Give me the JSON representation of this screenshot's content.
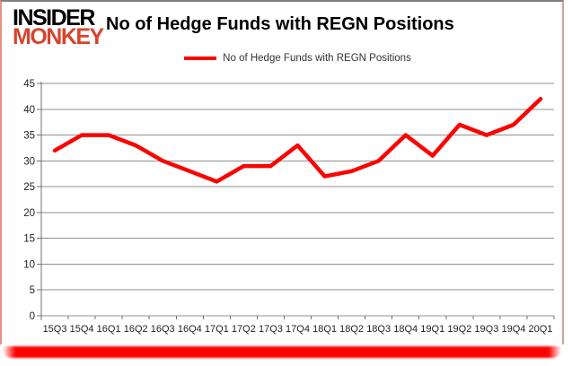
{
  "logo": {
    "line1": "INSIDER",
    "line2": "MONKEY"
  },
  "header": {
    "title": "No of Hedge Funds with REGN Positions"
  },
  "legend": {
    "label": "No of Hedge Funds with REGN Positions"
  },
  "colors": {
    "line": "#fb0300",
    "gridline": "#909090",
    "axis": "#707070",
    "tick_label": "#1f1f1f",
    "title_text": "#000000",
    "logo_insider": "#000000",
    "logo_monkey": "#d8442e",
    "bottom_border": "#fb0300"
  },
  "chart_data": {
    "type": "line",
    "title": "No of Hedge Funds with REGN Positions",
    "categories": [
      "15Q3",
      "15Q4",
      "16Q1",
      "16Q2",
      "16Q3",
      "16Q4",
      "17Q1",
      "17Q2",
      "17Q3",
      "17Q4",
      "18Q1",
      "18Q2",
      "18Q3",
      "18Q4",
      "19Q1",
      "19Q2",
      "19Q3",
      "19Q4",
      "20Q1"
    ],
    "series": [
      {
        "name": "No of Hedge Funds with REGN Positions",
        "color": "#fb0300",
        "values": [
          32,
          35,
          35,
          33,
          30,
          28,
          26,
          29,
          29,
          33,
          27,
          28,
          30,
          35,
          31,
          37,
          35,
          37,
          42
        ]
      }
    ],
    "xlabel": "",
    "ylabel": "",
    "ylim": [
      0,
      45
    ],
    "yticks": [
      0,
      5,
      10,
      15,
      20,
      25,
      30,
      35,
      40,
      45
    ],
    "grid": true,
    "legend_position": "top-center",
    "markers": false
  }
}
